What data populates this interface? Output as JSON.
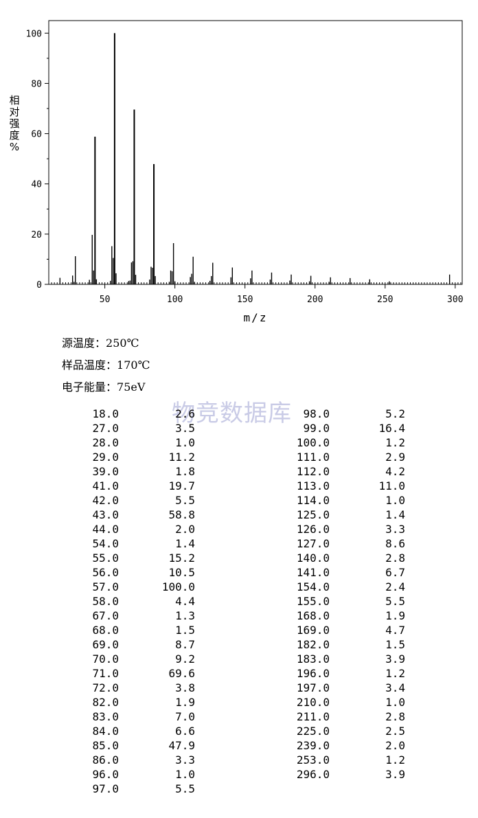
{
  "chart_data": {
    "type": "bar",
    "xlabel": "m/z",
    "ylabel": "相对强度%",
    "xlim": [
      10,
      305
    ],
    "ylim": [
      0,
      105
    ],
    "xticks": [
      50,
      100,
      150,
      200,
      250,
      300
    ],
    "yticks": [
      0,
      20,
      40,
      60,
      80,
      100
    ],
    "peaks": [
      {
        "x": 18.0,
        "y": 2.6
      },
      {
        "x": 27.0,
        "y": 3.5
      },
      {
        "x": 28.0,
        "y": 1.0
      },
      {
        "x": 29.0,
        "y": 11.2
      },
      {
        "x": 39.0,
        "y": 1.8
      },
      {
        "x": 41.0,
        "y": 19.7
      },
      {
        "x": 42.0,
        "y": 5.5
      },
      {
        "x": 43.0,
        "y": 58.8
      },
      {
        "x": 44.0,
        "y": 2.0
      },
      {
        "x": 54.0,
        "y": 1.4
      },
      {
        "x": 55.0,
        "y": 15.2
      },
      {
        "x": 56.0,
        "y": 10.5
      },
      {
        "x": 57.0,
        "y": 100.0
      },
      {
        "x": 58.0,
        "y": 4.4
      },
      {
        "x": 67.0,
        "y": 1.3
      },
      {
        "x": 68.0,
        "y": 1.5
      },
      {
        "x": 69.0,
        "y": 8.7
      },
      {
        "x": 70.0,
        "y": 9.2
      },
      {
        "x": 71.0,
        "y": 69.6
      },
      {
        "x": 72.0,
        "y": 3.8
      },
      {
        "x": 82.0,
        "y": 1.9
      },
      {
        "x": 83.0,
        "y": 7.0
      },
      {
        "x": 84.0,
        "y": 6.6
      },
      {
        "x": 85.0,
        "y": 47.9
      },
      {
        "x": 86.0,
        "y": 3.3
      },
      {
        "x": 96.0,
        "y": 1.0
      },
      {
        "x": 97.0,
        "y": 5.5
      },
      {
        "x": 98.0,
        "y": 5.2
      },
      {
        "x": 99.0,
        "y": 16.4
      },
      {
        "x": 100.0,
        "y": 1.2
      },
      {
        "x": 111.0,
        "y": 2.9
      },
      {
        "x": 112.0,
        "y": 4.2
      },
      {
        "x": 113.0,
        "y": 11.0
      },
      {
        "x": 114.0,
        "y": 1.0
      },
      {
        "x": 125.0,
        "y": 1.4
      },
      {
        "x": 126.0,
        "y": 3.3
      },
      {
        "x": 127.0,
        "y": 8.6
      },
      {
        "x": 140.0,
        "y": 2.8
      },
      {
        "x": 141.0,
        "y": 6.7
      },
      {
        "x": 154.0,
        "y": 2.4
      },
      {
        "x": 155.0,
        "y": 5.5
      },
      {
        "x": 168.0,
        "y": 1.9
      },
      {
        "x": 169.0,
        "y": 4.7
      },
      {
        "x": 182.0,
        "y": 1.5
      },
      {
        "x": 183.0,
        "y": 3.9
      },
      {
        "x": 196.0,
        "y": 1.2
      },
      {
        "x": 197.0,
        "y": 3.4
      },
      {
        "x": 210.0,
        "y": 1.0
      },
      {
        "x": 211.0,
        "y": 2.8
      },
      {
        "x": 225.0,
        "y": 2.5
      },
      {
        "x": 239.0,
        "y": 2.0
      },
      {
        "x": 253.0,
        "y": 1.2
      },
      {
        "x": 296.0,
        "y": 3.9
      }
    ]
  },
  "conditions": {
    "source_temp": {
      "label": "源温度：",
      "value": "250℃"
    },
    "sample_temp": {
      "label": "样品温度：",
      "value": "170℃"
    },
    "electron_energy": {
      "label": "电子能量：",
      "value": "75eV"
    }
  },
  "watermark": "物竞数据库",
  "table": {
    "left": [
      [
        "18.0",
        "2.6"
      ],
      [
        "27.0",
        "3.5"
      ],
      [
        "28.0",
        "1.0"
      ],
      [
        "29.0",
        "11.2"
      ],
      [
        "39.0",
        "1.8"
      ],
      [
        "41.0",
        "19.7"
      ],
      [
        "42.0",
        "5.5"
      ],
      [
        "43.0",
        "58.8"
      ],
      [
        "44.0",
        "2.0"
      ],
      [
        "54.0",
        "1.4"
      ],
      [
        "55.0",
        "15.2"
      ],
      [
        "56.0",
        "10.5"
      ],
      [
        "57.0",
        "100.0"
      ],
      [
        "58.0",
        "4.4"
      ],
      [
        "67.0",
        "1.3"
      ],
      [
        "68.0",
        "1.5"
      ],
      [
        "69.0",
        "8.7"
      ],
      [
        "70.0",
        "9.2"
      ],
      [
        "71.0",
        "69.6"
      ],
      [
        "72.0",
        "3.8"
      ],
      [
        "82.0",
        "1.9"
      ],
      [
        "83.0",
        "7.0"
      ],
      [
        "84.0",
        "6.6"
      ],
      [
        "85.0",
        "47.9"
      ],
      [
        "86.0",
        "3.3"
      ],
      [
        "96.0",
        "1.0"
      ],
      [
        "97.0",
        "5.5"
      ]
    ],
    "right": [
      [
        "98.0",
        "5.2"
      ],
      [
        "99.0",
        "16.4"
      ],
      [
        "100.0",
        "1.2"
      ],
      [
        "111.0",
        "2.9"
      ],
      [
        "112.0",
        "4.2"
      ],
      [
        "113.0",
        "11.0"
      ],
      [
        "114.0",
        "1.0"
      ],
      [
        "125.0",
        "1.4"
      ],
      [
        "126.0",
        "3.3"
      ],
      [
        "127.0",
        "8.6"
      ],
      [
        "140.0",
        "2.8"
      ],
      [
        "141.0",
        "6.7"
      ],
      [
        "154.0",
        "2.4"
      ],
      [
        "155.0",
        "5.5"
      ],
      [
        "168.0",
        "1.9"
      ],
      [
        "169.0",
        "4.7"
      ],
      [
        "182.0",
        "1.5"
      ],
      [
        "183.0",
        "3.9"
      ],
      [
        "196.0",
        "1.2"
      ],
      [
        "197.0",
        "3.4"
      ],
      [
        "210.0",
        "1.0"
      ],
      [
        "211.0",
        "2.8"
      ],
      [
        "225.0",
        "2.5"
      ],
      [
        "239.0",
        "2.0"
      ],
      [
        "253.0",
        "1.2"
      ],
      [
        "296.0",
        "3.9"
      ]
    ]
  }
}
